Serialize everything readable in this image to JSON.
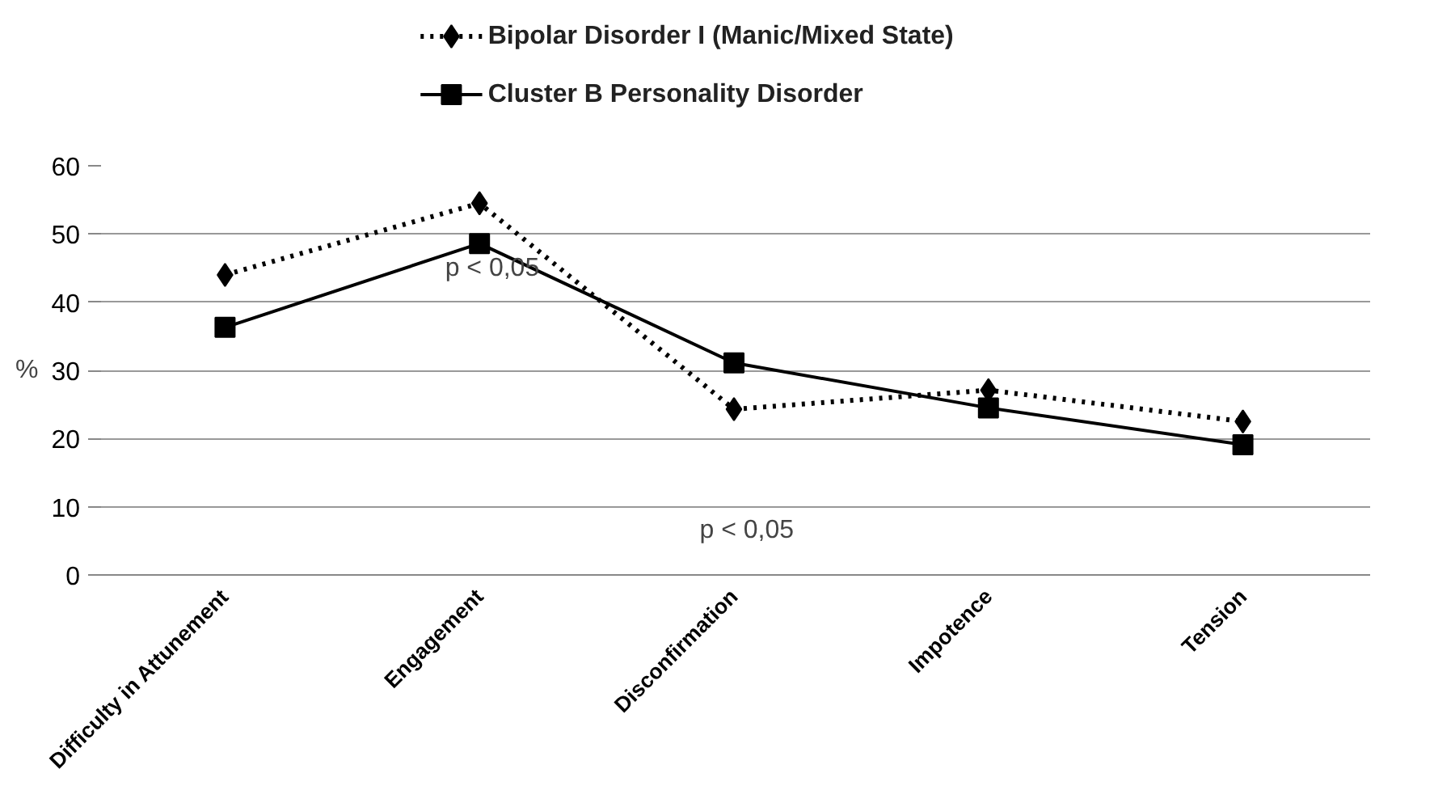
{
  "chart_data": {
    "type": "line",
    "ylabel": "%",
    "categories": [
      "Difficulty in Attunement",
      "Engagement",
      "Disconfirmation",
      "Impotence",
      "Tension"
    ],
    "series": [
      {
        "name": "Bipolar Disorder I (Manic/Mixed State)",
        "color": "#000000",
        "values": [
          44,
          54.5,
          24.3,
          27.1,
          22.5
        ],
        "marker": "diamond",
        "line_style": "dotted"
      },
      {
        "name": "Cluster B Personality Disorder",
        "color": "#000000",
        "values": [
          36.3,
          48.6,
          31.1,
          24.5,
          19.1
        ],
        "marker": "square",
        "line_style": "solid"
      }
    ],
    "ylim": [
      0,
      60
    ],
    "yticks": [
      0,
      10,
      20,
      30,
      40,
      50,
      60
    ],
    "grid": "y",
    "legend": "top",
    "annotations": [
      "p < 0,05",
      "p < 0,05"
    ]
  }
}
